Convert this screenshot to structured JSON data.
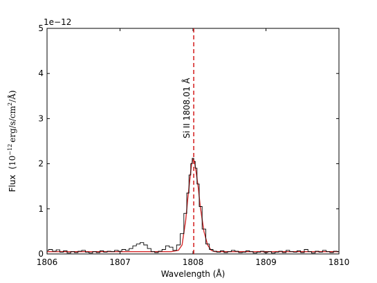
{
  "chart_data": {
    "type": "line",
    "offset_text": "1e−12",
    "xlabel": "Wavelength (Å)",
    "ylabel": {
      "prefix": "Flux",
      "open": "(",
      "base": "10",
      "exp": "−12",
      "unit": "erg/s/cm",
      "unit_exp": "2",
      "tail": "/Å)"
    },
    "xlim": [
      1806,
      1810
    ],
    "ylim": [
      0,
      5
    ],
    "xticks": [
      1806,
      1807,
      1808,
      1809,
      1810
    ],
    "yticks": [
      0,
      1,
      2,
      3,
      4,
      5
    ],
    "xtick_labels": [
      "1806",
      "1807",
      "1808",
      "1809",
      "1810"
    ],
    "ytick_labels": [
      "0",
      "1",
      "2",
      "3",
      "4",
      "5"
    ],
    "grid": false,
    "annotation": {
      "text": "Si II   1808.01 Å",
      "x": 1808.01,
      "color": "#d62728"
    },
    "series": [
      {
        "style": "observed",
        "color": "#000000",
        "x": [
          1806.0,
          1806.05,
          1806.1,
          1806.15,
          1806.2,
          1806.25,
          1806.3,
          1806.35,
          1806.4,
          1806.45,
          1806.5,
          1806.55,
          1806.6,
          1806.65,
          1806.7,
          1806.75,
          1806.8,
          1806.85,
          1806.9,
          1806.95,
          1807.0,
          1807.05,
          1807.1,
          1807.15,
          1807.2,
          1807.25,
          1807.3,
          1807.35,
          1807.4,
          1807.45,
          1807.5,
          1807.55,
          1807.6,
          1807.65,
          1807.7,
          1807.75,
          1807.8,
          1807.85,
          1807.9,
          1807.93,
          1807.96,
          1807.98,
          1808.0,
          1808.02,
          1808.04,
          1808.07,
          1808.1,
          1808.15,
          1808.2,
          1808.25,
          1808.3,
          1808.35,
          1808.4,
          1808.45,
          1808.5,
          1808.55,
          1808.6,
          1808.65,
          1808.7,
          1808.75,
          1808.8,
          1808.85,
          1808.9,
          1808.95,
          1809.0,
          1809.05,
          1809.1,
          1809.15,
          1809.2,
          1809.25,
          1809.3,
          1809.35,
          1809.4,
          1809.45,
          1809.5,
          1809.55,
          1809.6,
          1809.65,
          1809.7,
          1809.75,
          1809.8,
          1809.85,
          1809.9,
          1809.95,
          1810.0
        ],
        "y": [
          0.08,
          0.1,
          0.06,
          0.09,
          0.04,
          0.07,
          0.02,
          0.05,
          0.03,
          0.06,
          0.08,
          0.04,
          0.02,
          0.05,
          0.03,
          0.07,
          0.04,
          0.06,
          0.05,
          0.08,
          0.06,
          0.1,
          0.08,
          0.12,
          0.18,
          0.22,
          0.25,
          0.2,
          0.12,
          0.05,
          0.03,
          0.06,
          0.1,
          0.18,
          0.15,
          0.08,
          0.2,
          0.45,
          0.9,
          1.35,
          1.75,
          2.0,
          2.12,
          2.05,
          1.9,
          1.55,
          1.05,
          0.55,
          0.22,
          0.1,
          0.06,
          0.04,
          0.07,
          0.03,
          0.05,
          0.08,
          0.06,
          0.03,
          0.04,
          0.07,
          0.05,
          0.02,
          0.04,
          0.06,
          0.03,
          0.05,
          0.02,
          0.04,
          0.06,
          0.03,
          0.08,
          0.05,
          0.04,
          0.07,
          0.03,
          0.1,
          0.05,
          0.02,
          0.06,
          0.04,
          0.08,
          0.05,
          0.03,
          0.06,
          0.05
        ]
      },
      {
        "style": "model",
        "color": "#d62728",
        "x": [
          1806.0,
          1807.7,
          1807.8,
          1807.85,
          1807.9,
          1807.93,
          1807.96,
          1807.98,
          1808.0,
          1808.02,
          1808.04,
          1808.07,
          1808.1,
          1808.15,
          1808.2,
          1808.25,
          1808.3,
          1810.0
        ],
        "y": [
          0.05,
          0.05,
          0.08,
          0.2,
          0.75,
          1.25,
          1.7,
          1.98,
          2.1,
          2.05,
          1.85,
          1.5,
          1.05,
          0.5,
          0.2,
          0.08,
          0.05,
          0.05
        ]
      }
    ]
  }
}
